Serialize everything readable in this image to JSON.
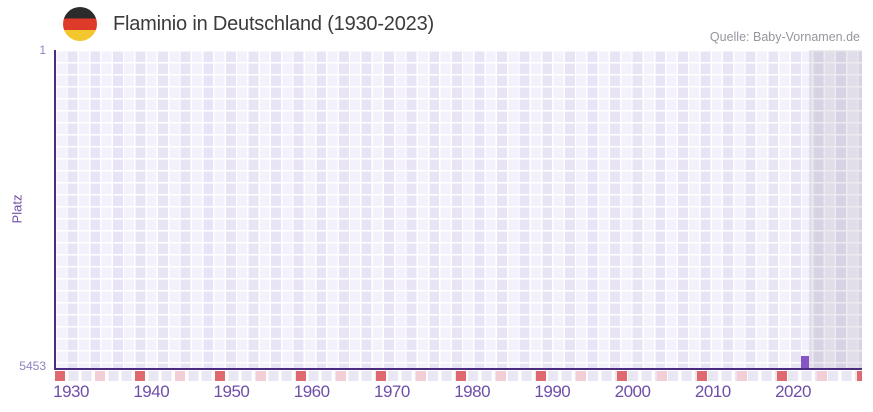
{
  "header": {
    "title": "Flaminio in Deutschland (1930-2023)",
    "flag_icon": "german-flag",
    "source": "Quelle: Baby-Vornamen.de"
  },
  "chart_data": {
    "type": "bar",
    "title": "Flaminio in Deutschland (1930-2023)",
    "xlabel": "",
    "ylabel": "Platz",
    "grid": true,
    "legend": false,
    "y_axis": {
      "top_tick": "1",
      "bottom_tick": "5453",
      "min": 1,
      "max": 5453,
      "inverted": true
    },
    "x_domain": [
      1928,
      2028.6
    ],
    "x_ticks": [
      1930,
      1940,
      1950,
      1960,
      1970,
      1980,
      1990,
      2000,
      2010,
      2020
    ],
    "series": [
      {
        "name": "Platz",
        "points": [
          {
            "year": 2021,
            "rank": 5240
          }
        ]
      }
    ],
    "recent_band_from_year": 2022,
    "axis_markers": {
      "strong": [
        1928,
        1938,
        1948,
        1958,
        1968,
        1978,
        1988,
        1998,
        2008,
        2018,
        2028
      ],
      "light": [
        1933,
        1943,
        1953,
        1963,
        1973,
        1983,
        1993,
        2003,
        2013,
        2023
      ]
    },
    "colors": {
      "bar": "#8656c4",
      "axis": "#4b2c80",
      "band_overlay": "rgba(96,88,118,0.12)",
      "marker_strong": "#e0686f",
      "marker_light": "#f3ced7",
      "grid_col_light": "#f3f1fb",
      "grid_col_dark": "#e8e4f5",
      "grid_line": "#ffffff",
      "tick_label": "#6f4ea8",
      "y_tick_label": "#9183c5",
      "axis_title": "#6f4ea8",
      "title": "#3b3b3b",
      "source": "#98959d",
      "flag_black": "#2b2b2b",
      "flag_red": "#dd3a2a",
      "flag_gold": "#f5c72e"
    }
  }
}
